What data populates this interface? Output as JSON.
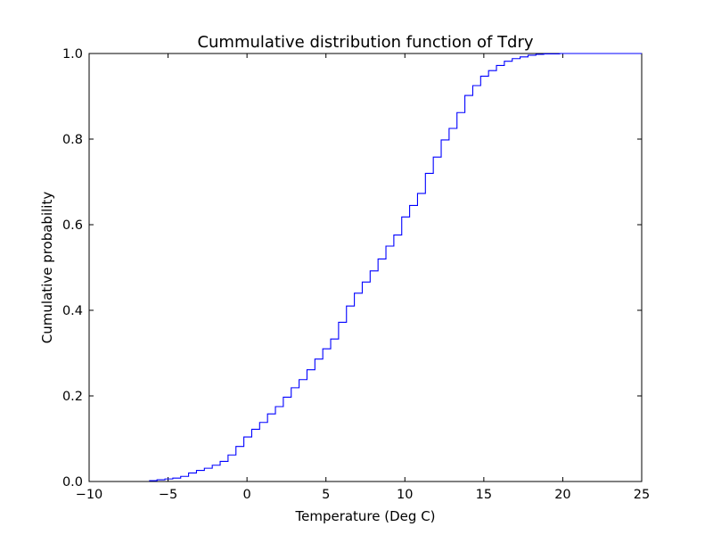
{
  "chart_data": {
    "type": "line",
    "drawstyle": "steps-post",
    "title": "Cummulative distribution function of Tdry",
    "xlabel": "Temperature (Deg C)",
    "ylabel": "Cumulative probability",
    "xlim": [
      -10,
      25
    ],
    "ylim": [
      0,
      1
    ],
    "xticks": [
      -10,
      -5,
      0,
      5,
      10,
      15,
      20,
      25
    ],
    "xtick_labels": [
      "−10",
      "−5",
      "0",
      "5",
      "10",
      "15",
      "20",
      "25"
    ],
    "yticks": [
      0,
      0.2,
      0.4,
      0.6,
      0.8,
      1.0
    ],
    "ytick_labels": [
      "0.0",
      "0.2",
      "0.4",
      "0.6",
      "0.8",
      "1.0"
    ],
    "grid": false,
    "line_color": "#0000ff",
    "series": [
      {
        "x": [
          -6.2,
          -5.7,
          -5.2,
          -4.7,
          -4.2,
          -3.7,
          -3.2,
          -2.7,
          -2.2,
          -1.7,
          -1.2,
          -0.7,
          -0.2,
          0.3,
          0.8,
          1.3,
          1.8,
          2.3,
          2.8,
          3.3,
          3.8,
          4.3,
          4.8,
          5.3,
          5.8,
          6.3,
          6.8,
          7.3,
          7.8,
          8.3,
          8.8,
          9.3,
          9.8,
          10.3,
          10.8,
          11.3,
          11.8,
          12.3,
          12.8,
          13.3,
          13.8,
          14.3,
          14.8,
          15.3,
          15.8,
          16.3,
          16.8,
          17.3,
          17.8,
          18.3,
          18.8,
          19.3,
          19.8,
          20.3,
          20.8,
          21.3,
          21.8,
          22.3,
          22.8,
          23.3,
          23.8,
          24.3
        ],
        "y": [
          0.002,
          0.004,
          0.006,
          0.008,
          0.012,
          0.02,
          0.026,
          0.031,
          0.038,
          0.047,
          0.062,
          0.082,
          0.104,
          0.122,
          0.138,
          0.158,
          0.175,
          0.197,
          0.219,
          0.238,
          0.261,
          0.286,
          0.31,
          0.333,
          0.372,
          0.41,
          0.44,
          0.466,
          0.492,
          0.52,
          0.55,
          0.576,
          0.618,
          0.645,
          0.673,
          0.72,
          0.758,
          0.798,
          0.825,
          0.862,
          0.902,
          0.925,
          0.947,
          0.96,
          0.972,
          0.982,
          0.988,
          0.992,
          0.996,
          0.998,
          0.999,
          0.999,
          1.0,
          1.0,
          1.0,
          1.0,
          1.0,
          1.0,
          1.0,
          1.0,
          1.0,
          1.0
        ]
      }
    ]
  }
}
